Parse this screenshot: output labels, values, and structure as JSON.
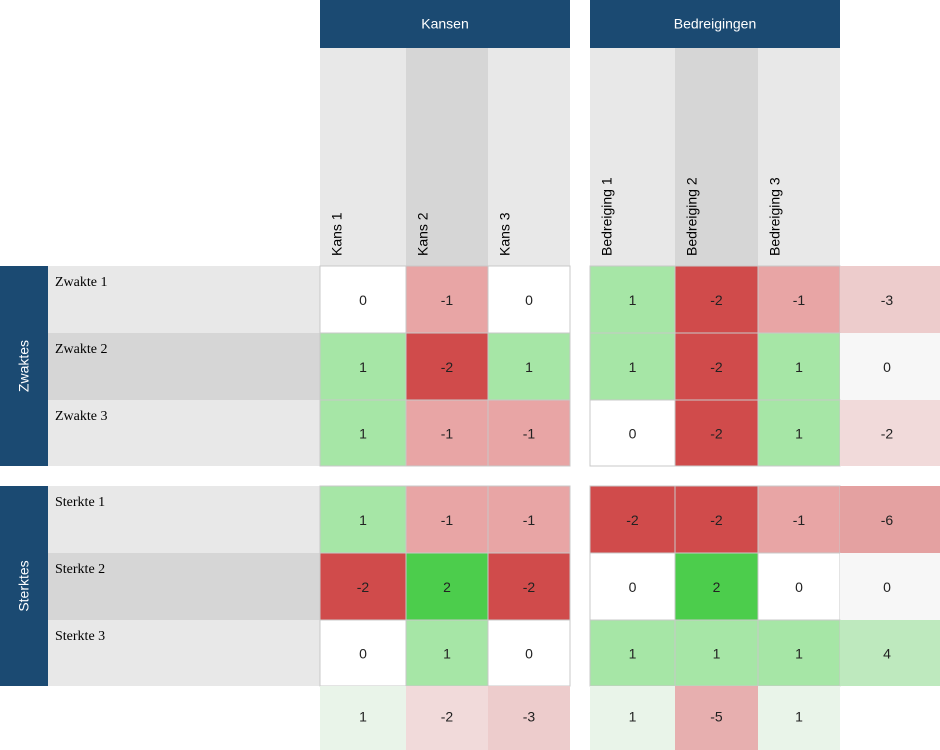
{
  "column_groups": [
    {
      "title": "Kansen",
      "columns": [
        "Kans 1",
        "Kans 2",
        "Kans 3"
      ]
    },
    {
      "title": "Bedreigingen",
      "columns": [
        "Bedreiging 1",
        "Bedreiging 2",
        "Bedreiging 3"
      ]
    }
  ],
  "row_groups": [
    {
      "title": "Zwaktes",
      "rows": [
        {
          "label": "Zwakte 1",
          "values": [
            0,
            -1,
            0,
            1,
            -2,
            -1
          ],
          "total": -3
        },
        {
          "label": "Zwakte 2",
          "values": [
            1,
            -2,
            1,
            1,
            -2,
            1
          ],
          "total": 0
        },
        {
          "label": "Zwakte 3",
          "values": [
            1,
            -1,
            -1,
            0,
            -2,
            1
          ],
          "total": -2
        }
      ]
    },
    {
      "title": "Sterktes",
      "rows": [
        {
          "label": "Sterkte 1",
          "values": [
            1,
            -1,
            -1,
            -2,
            -2,
            -1
          ],
          "total": -6
        },
        {
          "label": "Sterkte 2",
          "values": [
            -2,
            2,
            -2,
            0,
            2,
            0
          ],
          "total": 0
        },
        {
          "label": "Sterkte 3",
          "values": [
            0,
            1,
            0,
            1,
            1,
            1
          ],
          "total": 4
        }
      ]
    }
  ],
  "column_totals": [
    1,
    -2,
    -3,
    1,
    -5,
    1
  ]
}
